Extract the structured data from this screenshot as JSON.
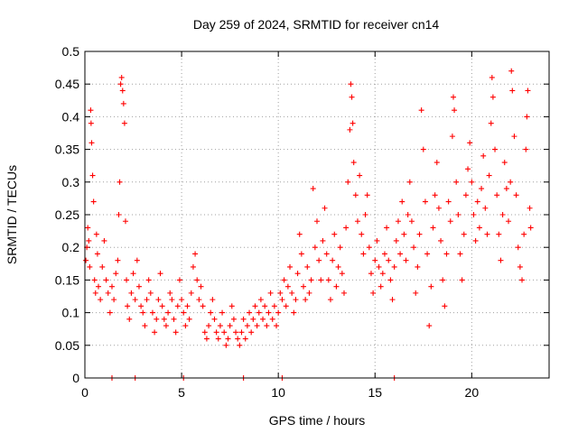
{
  "chart_data": {
    "type": "scatter",
    "title": "Day 259 of 2024, SRMTID for receiver cn14",
    "xlabel": "GPS time / hours",
    "ylabel": "SRMTID / TECUs",
    "xlim": [
      0,
      24
    ],
    "ylim": [
      0,
      0.5
    ],
    "x_ticks": [
      0,
      5,
      10,
      15,
      20
    ],
    "x_tick_labels": [
      "0",
      "5",
      "10",
      "15",
      "20"
    ],
    "y_ticks": [
      0,
      0.05,
      0.1,
      0.15,
      0.2,
      0.25,
      0.3,
      0.35,
      0.4,
      0.45,
      0.5
    ],
    "y_tick_labels": [
      "0",
      "0.05",
      "0.1",
      "0.15",
      "0.2",
      "0.25",
      "0.3",
      "0.35",
      "0.4",
      "0.45",
      "0.5"
    ],
    "grid": true,
    "marker": "+",
    "color": "#ff0000",
    "series": [
      {
        "name": "SRMTID cn14",
        "points": [
          [
            0.05,
            0.18
          ],
          [
            0.1,
            0.2
          ],
          [
            0.15,
            0.23
          ],
          [
            0.2,
            0.21
          ],
          [
            0.25,
            0.17
          ],
          [
            0.3,
            0.41
          ],
          [
            0.32,
            0.39
          ],
          [
            0.35,
            0.36
          ],
          [
            0.4,
            0.31
          ],
          [
            0.45,
            0.27
          ],
          [
            0.5,
            0.15
          ],
          [
            0.55,
            0.13
          ],
          [
            0.6,
            0.22
          ],
          [
            0.65,
            0.19
          ],
          [
            0.7,
            0.14
          ],
          [
            0.8,
            0.12
          ],
          [
            0.9,
            0.17
          ],
          [
            1.0,
            0.21
          ],
          [
            1.1,
            0.15
          ],
          [
            1.2,
            0.13
          ],
          [
            1.3,
            0.1
          ],
          [
            1.4,
            0.14
          ],
          [
            1.5,
            0.12
          ],
          [
            1.6,
            0.16
          ],
          [
            1.7,
            0.18
          ],
          [
            1.75,
            0.25
          ],
          [
            1.8,
            0.3
          ],
          [
            1.85,
            0.45
          ],
          [
            1.9,
            0.46
          ],
          [
            1.95,
            0.44
          ],
          [
            2.0,
            0.42
          ],
          [
            2.05,
            0.39
          ],
          [
            2.1,
            0.24
          ],
          [
            2.15,
            0.15
          ],
          [
            2.2,
            0.11
          ],
          [
            2.3,
            0.09
          ],
          [
            2.4,
            0.13
          ],
          [
            2.5,
            0.16
          ],
          [
            2.6,
            0.12
          ],
          [
            2.7,
            0.18
          ],
          [
            2.8,
            0.14
          ],
          [
            2.9,
            0.11
          ],
          [
            3.0,
            0.1
          ],
          [
            3.1,
            0.08
          ],
          [
            3.2,
            0.12
          ],
          [
            3.3,
            0.15
          ],
          [
            3.4,
            0.13
          ],
          [
            3.5,
            0.1
          ],
          [
            3.6,
            0.07
          ],
          [
            3.7,
            0.09
          ],
          [
            3.8,
            0.12
          ],
          [
            3.9,
            0.16
          ],
          [
            4.0,
            0.11
          ],
          [
            4.1,
            0.09
          ],
          [
            4.2,
            0.08
          ],
          [
            4.3,
            0.1
          ],
          [
            4.4,
            0.13
          ],
          [
            4.5,
            0.12
          ],
          [
            4.6,
            0.09
          ],
          [
            4.7,
            0.07
          ],
          [
            4.8,
            0.11
          ],
          [
            4.9,
            0.15
          ],
          [
            5.0,
            0.12
          ],
          [
            5.1,
            0.1
          ],
          [
            5.2,
            0.08
          ],
          [
            5.3,
            0.11
          ],
          [
            5.4,
            0.09
          ],
          [
            5.5,
            0.13
          ],
          [
            5.6,
            0.17
          ],
          [
            5.7,
            0.19
          ],
          [
            5.8,
            0.15
          ],
          [
            5.9,
            0.12
          ],
          [
            6.0,
            0.14
          ],
          [
            6.1,
            0.11
          ],
          [
            6.2,
            0.07
          ],
          [
            6.3,
            0.06
          ],
          [
            6.4,
            0.08
          ],
          [
            6.5,
            0.1
          ],
          [
            6.6,
            0.12
          ],
          [
            6.7,
            0.09
          ],
          [
            6.8,
            0.07
          ],
          [
            6.9,
            0.06
          ],
          [
            7.0,
            0.08
          ],
          [
            7.1,
            0.1
          ],
          [
            7.2,
            0.07
          ],
          [
            7.3,
            0.05
          ],
          [
            7.4,
            0.06
          ],
          [
            7.5,
            0.08
          ],
          [
            7.6,
            0.11
          ],
          [
            7.7,
            0.09
          ],
          [
            7.8,
            0.07
          ],
          [
            7.9,
            0.06
          ],
          [
            8.0,
            0.05
          ],
          [
            8.1,
            0.07
          ],
          [
            8.2,
            0.09
          ],
          [
            8.3,
            0.06
          ],
          [
            8.4,
            0.08
          ],
          [
            8.5,
            0.1
          ],
          [
            8.6,
            0.07
          ],
          [
            8.7,
            0.09
          ],
          [
            8.8,
            0.11
          ],
          [
            8.9,
            0.08
          ],
          [
            9.0,
            0.1
          ],
          [
            9.1,
            0.12
          ],
          [
            9.2,
            0.09
          ],
          [
            9.3,
            0.11
          ],
          [
            9.4,
            0.08
          ],
          [
            9.5,
            0.1
          ],
          [
            9.6,
            0.13
          ],
          [
            9.7,
            0.09
          ],
          [
            9.8,
            0.11
          ],
          [
            9.9,
            0.08
          ],
          [
            10.0,
            0.1
          ],
          [
            10.1,
            0.13
          ],
          [
            10.2,
            0.12
          ],
          [
            10.3,
            0.15
          ],
          [
            10.4,
            0.11
          ],
          [
            10.5,
            0.14
          ],
          [
            10.6,
            0.17
          ],
          [
            10.7,
            0.13
          ],
          [
            10.8,
            0.1
          ],
          [
            10.9,
            0.12
          ],
          [
            11.0,
            0.16
          ],
          [
            11.1,
            0.22
          ],
          [
            11.2,
            0.19
          ],
          [
            11.3,
            0.14
          ],
          [
            11.4,
            0.12
          ],
          [
            11.5,
            0.17
          ],
          [
            11.6,
            0.13
          ],
          [
            11.7,
            0.15
          ],
          [
            11.8,
            0.29
          ],
          [
            11.9,
            0.2
          ],
          [
            12.0,
            0.24
          ],
          [
            12.1,
            0.18
          ],
          [
            12.2,
            0.15
          ],
          [
            12.3,
            0.21
          ],
          [
            12.4,
            0.26
          ],
          [
            12.5,
            0.19
          ],
          [
            12.6,
            0.15
          ],
          [
            12.7,
            0.12
          ],
          [
            12.8,
            0.18
          ],
          [
            12.9,
            0.22
          ],
          [
            13.0,
            0.14
          ],
          [
            13.1,
            0.17
          ],
          [
            13.2,
            0.2
          ],
          [
            13.3,
            0.16
          ],
          [
            13.4,
            0.13
          ],
          [
            13.5,
            0.23
          ],
          [
            13.6,
            0.3
          ],
          [
            13.7,
            0.38
          ],
          [
            13.75,
            0.45
          ],
          [
            13.8,
            0.43
          ],
          [
            13.85,
            0.39
          ],
          [
            13.9,
            0.33
          ],
          [
            14.0,
            0.28
          ],
          [
            14.1,
            0.24
          ],
          [
            14.2,
            0.31
          ],
          [
            14.3,
            0.22
          ],
          [
            14.4,
            0.19
          ],
          [
            14.5,
            0.25
          ],
          [
            14.6,
            0.28
          ],
          [
            14.7,
            0.2
          ],
          [
            14.8,
            0.16
          ],
          [
            14.9,
            0.13
          ],
          [
            15.0,
            0.18
          ],
          [
            15.1,
            0.21
          ],
          [
            15.2,
            0.17
          ],
          [
            15.3,
            0.14
          ],
          [
            15.4,
            0.16
          ],
          [
            15.5,
            0.19
          ],
          [
            15.6,
            0.23
          ],
          [
            15.7,
            0.18
          ],
          [
            15.8,
            0.15
          ],
          [
            15.9,
            0.12
          ],
          [
            16.0,
            0.17
          ],
          [
            16.1,
            0.21
          ],
          [
            16.2,
            0.24
          ],
          [
            16.3,
            0.19
          ],
          [
            16.4,
            0.27
          ],
          [
            16.5,
            0.22
          ],
          [
            16.6,
            0.18
          ],
          [
            16.7,
            0.25
          ],
          [
            16.8,
            0.3
          ],
          [
            16.9,
            0.24
          ],
          [
            17.0,
            0.2
          ],
          [
            17.1,
            0.13
          ],
          [
            17.2,
            0.17
          ],
          [
            17.3,
            0.22
          ],
          [
            17.4,
            0.41
          ],
          [
            17.5,
            0.35
          ],
          [
            17.6,
            0.27
          ],
          [
            17.7,
            0.19
          ],
          [
            17.8,
            0.08
          ],
          [
            17.9,
            0.14
          ],
          [
            18.0,
            0.23
          ],
          [
            18.1,
            0.28
          ],
          [
            18.2,
            0.33
          ],
          [
            18.3,
            0.26
          ],
          [
            18.4,
            0.21
          ],
          [
            18.5,
            0.15
          ],
          [
            18.6,
            0.11
          ],
          [
            18.7,
            0.19
          ],
          [
            18.8,
            0.27
          ],
          [
            18.9,
            0.24
          ],
          [
            19.0,
            0.37
          ],
          [
            19.05,
            0.43
          ],
          [
            19.1,
            0.41
          ],
          [
            19.2,
            0.3
          ],
          [
            19.3,
            0.25
          ],
          [
            19.4,
            0.19
          ],
          [
            19.5,
            0.15
          ],
          [
            19.6,
            0.22
          ],
          [
            19.7,
            0.28
          ],
          [
            19.8,
            0.32
          ],
          [
            19.9,
            0.36
          ],
          [
            20.0,
            0.3
          ],
          [
            20.1,
            0.25
          ],
          [
            20.2,
            0.21
          ],
          [
            20.3,
            0.27
          ],
          [
            20.4,
            0.23
          ],
          [
            20.5,
            0.29
          ],
          [
            20.6,
            0.34
          ],
          [
            20.7,
            0.26
          ],
          [
            20.8,
            0.22
          ],
          [
            20.9,
            0.31
          ],
          [
            21.0,
            0.39
          ],
          [
            21.05,
            0.46
          ],
          [
            21.1,
            0.43
          ],
          [
            21.2,
            0.35
          ],
          [
            21.3,
            0.28
          ],
          [
            21.4,
            0.22
          ],
          [
            21.5,
            0.18
          ],
          [
            21.6,
            0.25
          ],
          [
            21.7,
            0.33
          ],
          [
            21.8,
            0.29
          ],
          [
            21.9,
            0.24
          ],
          [
            22.0,
            0.3
          ],
          [
            22.05,
            0.47
          ],
          [
            22.1,
            0.44
          ],
          [
            22.2,
            0.37
          ],
          [
            22.3,
            0.28
          ],
          [
            22.4,
            0.2
          ],
          [
            22.5,
            0.17
          ],
          [
            22.6,
            0.15
          ],
          [
            22.7,
            0.22
          ],
          [
            22.8,
            0.35
          ],
          [
            22.85,
            0.4
          ],
          [
            22.9,
            0.44
          ],
          [
            23.0,
            0.26
          ],
          [
            23.05,
            0.23
          ],
          [
            1.4,
            0.0
          ],
          [
            2.6,
            0.0
          ],
          [
            5.1,
            0.0
          ],
          [
            8.2,
            0.0
          ],
          [
            10.2,
            0.0
          ],
          [
            16.0,
            0.0
          ]
        ]
      }
    ]
  }
}
